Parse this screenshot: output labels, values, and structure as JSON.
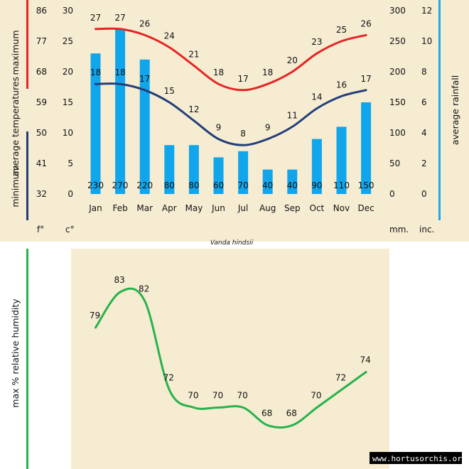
{
  "colors": {
    "background": "#f6ecd2",
    "max_line": "#e52424",
    "min_line": "#223e7a",
    "rain_bar": "#11a5ec",
    "humidity_line": "#27b34b",
    "rain_axis": "#22a7e8",
    "humidity_axis": "#27b34b"
  },
  "chart_data": [
    {
      "type": "bar+line",
      "title": "",
      "months": [
        "Jan",
        "Feb",
        "Mar",
        "Apr",
        "May",
        "Jun",
        "Jul",
        "Aug",
        "Sep",
        "Oct",
        "Nov",
        "Dec"
      ],
      "max_temp_c": [
        27,
        27,
        26,
        24,
        21,
        18,
        17,
        18,
        20,
        23,
        25,
        26
      ],
      "min_temp_c": [
        18,
        18,
        17,
        15,
        12,
        9,
        8,
        9,
        11,
        14,
        16,
        17
      ],
      "rainfall_mm": [
        230,
        270,
        220,
        80,
        80,
        60,
        70,
        40,
        40,
        90,
        110,
        150
      ],
      "left_axis_c": {
        "ylim": [
          0,
          30
        ],
        "ticks": [
          "0",
          "5",
          "10",
          "15",
          "20",
          "25",
          "30"
        ],
        "unit": "c°"
      },
      "left_axis_f": {
        "ticks": [
          "32",
          "41",
          "50",
          "59",
          "68",
          "77",
          "86"
        ],
        "unit": "f°"
      },
      "right_axis_mm": {
        "ylim": [
          0,
          300
        ],
        "ticks": [
          "0",
          "50",
          "100",
          "150",
          "200",
          "250",
          "300"
        ],
        "unit": "mm."
      },
      "right_axis_inc": {
        "ticks": [
          "0",
          "2",
          "4",
          "6",
          "8",
          "10",
          "12"
        ],
        "unit": "inc."
      },
      "left_label_max": "maximum",
      "left_label_avg": "average  temperatures",
      "left_label_min": "minimum",
      "right_label": "average  rainfall"
    },
    {
      "type": "line",
      "title": "Vanda hindsii",
      "ylabel": "max  %  relative  humidity",
      "humidity": [
        79,
        83,
        82,
        72,
        70,
        70,
        70,
        68,
        68,
        70,
        72,
        74
      ]
    }
  ],
  "watermark": "www.hortusorchis.org"
}
